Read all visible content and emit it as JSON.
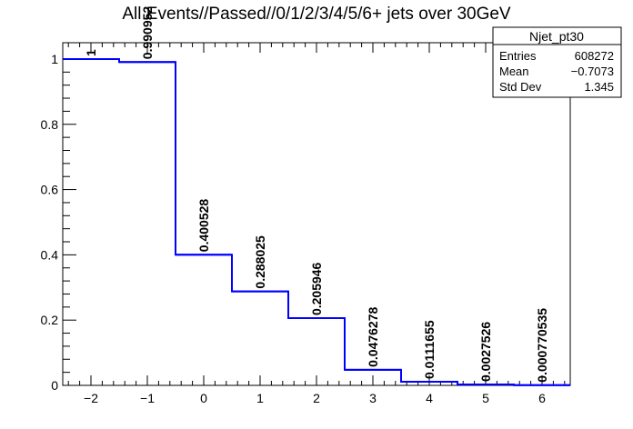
{
  "chart_data": {
    "type": "histogram",
    "title": "All Events//Passed//0/1/2/3/4/5/6+ jets over 30GeV",
    "xlabel": "",
    "ylabel": "",
    "xlim": [
      -2.5,
      6.5
    ],
    "ylim": [
      0,
      1.05
    ],
    "x_ticks": [
      -2,
      -1,
      0,
      1,
      2,
      3,
      4,
      5,
      6
    ],
    "y_ticks": [
      0,
      0.2,
      0.4,
      0.6,
      0.8,
      1
    ],
    "bins": [
      {
        "low": -2.5,
        "high": -1.5,
        "value": 1.0,
        "label": "1"
      },
      {
        "low": -1.5,
        "high": -0.5,
        "value": 0.990952,
        "label": "0.990952"
      },
      {
        "low": -0.5,
        "high": 0.5,
        "value": 0.400528,
        "label": "0.400528"
      },
      {
        "low": 0.5,
        "high": 1.5,
        "value": 0.288025,
        "label": "0.288025"
      },
      {
        "low": 1.5,
        "high": 2.5,
        "value": 0.205946,
        "label": "0.205946"
      },
      {
        "low": 2.5,
        "high": 3.5,
        "value": 0.0476278,
        "label": "0.0476278"
      },
      {
        "low": 3.5,
        "high": 4.5,
        "value": 0.0111655,
        "label": "0.0111655"
      },
      {
        "low": 4.5,
        "high": 5.5,
        "value": 0.0027526,
        "label": "0.0027526"
      },
      {
        "low": 5.5,
        "high": 6.5,
        "value": 0.000770535,
        "label": "0.000770535"
      }
    ],
    "line_color": "#0000ff",
    "grid": false,
    "stats_box": {
      "name": "Njet_pt30",
      "rows": [
        {
          "key": "Entries",
          "value": "608272"
        },
        {
          "key": "Mean",
          "value": "−0.7073"
        },
        {
          "key": "Std Dev",
          "value": "1.345"
        }
      ]
    }
  }
}
